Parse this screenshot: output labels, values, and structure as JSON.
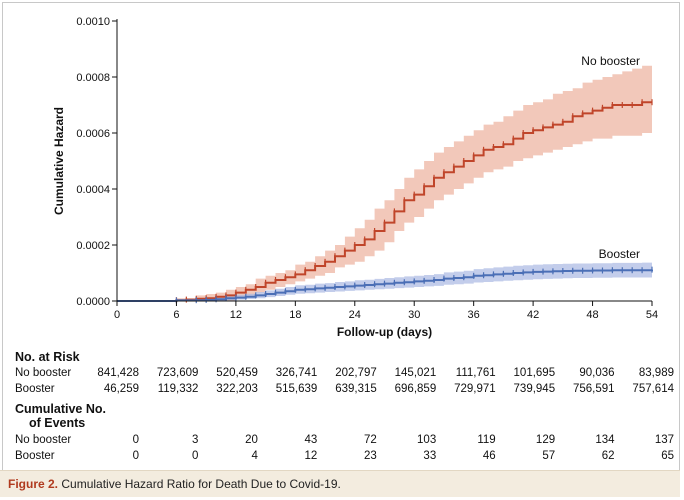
{
  "chart_data": {
    "type": "line",
    "xlabel": "Follow-up (days)",
    "ylabel": "Cumulative Hazard",
    "xlim": [
      0,
      54
    ],
    "ylim": [
      0,
      0.001
    ],
    "x_ticks": [
      0,
      6,
      12,
      18,
      24,
      30,
      36,
      42,
      48,
      54
    ],
    "y_ticks": [
      "0.0000",
      "0.0002",
      "0.0004",
      "0.0006",
      "0.0008",
      "0.0010"
    ],
    "series": [
      {
        "name": "No booster",
        "color": "#c0452a",
        "band_color": "#e9a48c",
        "x": [
          0,
          6,
          7,
          8,
          9,
          10,
          11,
          12,
          13,
          14,
          15,
          16,
          17,
          18,
          19,
          20,
          21,
          22,
          23,
          24,
          25,
          26,
          27,
          28,
          29,
          30,
          31,
          32,
          33,
          34,
          35,
          36,
          37,
          38,
          39,
          40,
          41,
          42,
          43,
          44,
          45,
          46,
          47,
          48,
          49,
          50,
          51,
          52,
          53,
          54
        ],
        "y": [
          0,
          3e-06,
          5e-06,
          8e-06,
          1e-05,
          1.5e-05,
          2e-05,
          3e-05,
          4e-05,
          5e-05,
          6.5e-05,
          7.5e-05,
          8.5e-05,
          9.5e-05,
          0.00011,
          0.000125,
          0.00014,
          0.00016,
          0.00018,
          0.0002,
          0.00022,
          0.00025,
          0.00028,
          0.00032,
          0.00036,
          0.00038,
          0.00041,
          0.00044,
          0.00046,
          0.00048,
          0.0005,
          0.00052,
          0.00054,
          0.00055,
          0.00056,
          0.00058,
          0.0006,
          0.00061,
          0.00062,
          0.00063,
          0.00064,
          0.00066,
          0.00067,
          0.00068,
          0.00069,
          0.0007,
          0.0007,
          0.0007,
          0.00071,
          0.00071
        ],
        "lower": [
          0,
          0,
          0,
          0,
          0,
          0,
          0,
          1e-05,
          2e-05,
          3e-05,
          4e-05,
          5e-05,
          6e-05,
          7e-05,
          8e-05,
          9e-05,
          0.0001,
          0.00012,
          0.00013,
          0.00014,
          0.00016,
          0.00018,
          0.00021,
          0.00025,
          0.00028,
          0.0003,
          0.00033,
          0.00036,
          0.00038,
          0.0004,
          0.00042,
          0.00044,
          0.00046,
          0.00047,
          0.00048,
          0.0005,
          0.00051,
          0.00052,
          0.00053,
          0.00054,
          0.00055,
          0.00056,
          0.00057,
          0.00058,
          0.00058,
          0.00059,
          0.00059,
          0.00059,
          0.0006,
          0.0006
        ],
        "upper": [
          0,
          1e-05,
          1e-05,
          2e-05,
          2.5e-05,
          3e-05,
          4e-05,
          5e-05,
          6e-05,
          8e-05,
          9e-05,
          0.0001,
          0.00011,
          0.00013,
          0.00014,
          0.00016,
          0.00018,
          0.0002,
          0.00023,
          0.00026,
          0.00029,
          0.00033,
          0.00036,
          0.0004,
          0.00044,
          0.00047,
          0.0005,
          0.00053,
          0.00055,
          0.00057,
          0.00059,
          0.00061,
          0.00063,
          0.00064,
          0.00066,
          0.00068,
          0.0007,
          0.00071,
          0.00072,
          0.00074,
          0.00075,
          0.00076,
          0.00078,
          0.00079,
          0.0008,
          0.00081,
          0.00082,
          0.00083,
          0.00084,
          0.00084
        ]
      },
      {
        "name": "Booster",
        "color": "#4b6fb6",
        "band_color": "#a9b8e3",
        "x": [
          0,
          6,
          8,
          9,
          10,
          11,
          12,
          13,
          14,
          15,
          16,
          17,
          18,
          19,
          20,
          21,
          22,
          23,
          24,
          25,
          26,
          27,
          28,
          29,
          30,
          31,
          32,
          33,
          34,
          35,
          36,
          37,
          38,
          39,
          40,
          41,
          42,
          43,
          44,
          45,
          46,
          47,
          48,
          49,
          50,
          51,
          52,
          53,
          54
        ],
        "y": [
          0,
          2e-06,
          3e-06,
          4e-06,
          6e-06,
          1e-05,
          1.2e-05,
          1.5e-05,
          2e-05,
          2.5e-05,
          3e-05,
          3.5e-05,
          4e-05,
          4.2e-05,
          4.5e-05,
          4.7e-05,
          5e-05,
          5.2e-05,
          5.5e-05,
          5.7e-05,
          6e-05,
          6.2e-05,
          6.5e-05,
          6.7e-05,
          7e-05,
          7.2e-05,
          7.5e-05,
          8e-05,
          8.2e-05,
          8.5e-05,
          9e-05,
          9.2e-05,
          9.5e-05,
          9.7e-05,
          0.0001,
          0.000102,
          0.000104,
          0.000105,
          0.000106,
          0.000107,
          0.000108,
          0.000108,
          0.000109,
          0.000109,
          0.00011,
          0.00011,
          0.00011,
          0.00011,
          0.000112
        ],
        "lower": [
          0,
          0,
          0,
          0,
          0,
          3e-06,
          5e-06,
          7e-06,
          1e-05,
          1.4e-05,
          1.8e-05,
          2.2e-05,
          2.6e-05,
          2.8e-05,
          3e-05,
          3.2e-05,
          3.4e-05,
          3.6e-05,
          3.8e-05,
          4e-05,
          4.2e-05,
          4.4e-05,
          4.6e-05,
          4.8e-05,
          5e-05,
          5.2e-05,
          5.4e-05,
          5.8e-05,
          6e-05,
          6.2e-05,
          6.6e-05,
          6.8e-05,
          7e-05,
          7.2e-05,
          7.4e-05,
          7.6e-05,
          7.8e-05,
          7.9e-05,
          8e-05,
          8.1e-05,
          8.2e-05,
          8.2e-05,
          8.3e-05,
          8.3e-05,
          8.4e-05,
          8.4e-05,
          8.4e-05,
          8.4e-05,
          8.5e-05
        ],
        "upper": [
          0,
          6e-06,
          8e-06,
          1e-05,
          1.3e-05,
          1.8e-05,
          2.2e-05,
          2.6e-05,
          3.2e-05,
          3.8e-05,
          4.4e-05,
          5e-05,
          5.6e-05,
          5.8e-05,
          6.2e-05,
          6.4e-05,
          6.8e-05,
          7e-05,
          7.4e-05,
          7.6e-05,
          7.9e-05,
          8.2e-05,
          8.5e-05,
          8.8e-05,
          9e-05,
          9.3e-05,
          9.6e-05,
          0.000102,
          0.000105,
          0.000108,
          0.000114,
          0.000117,
          0.00012,
          0.000123,
          0.000126,
          0.000128,
          0.00013,
          0.000131,
          0.000132,
          0.000133,
          0.000134,
          0.000134,
          0.000135,
          0.000135,
          0.000136,
          0.000136,
          0.000136,
          0.000137,
          0.000138
        ]
      }
    ],
    "annotations": [
      "No booster",
      "Booster"
    ]
  },
  "risk_table": {
    "title": "No. at Risk",
    "rows": [
      {
        "label": "No booster",
        "values": [
          "841,428",
          "723,609",
          "520,459",
          "326,741",
          "202,797",
          "145,021",
          "111,761",
          "101,695",
          "90,036",
          "83,989"
        ]
      },
      {
        "label": "Booster",
        "values": [
          "46,259",
          "119,332",
          "322,203",
          "515,639",
          "639,315",
          "696,859",
          "729,971",
          "739,945",
          "756,591",
          "757,614"
        ]
      }
    ]
  },
  "events_table": {
    "title_line1": "Cumulative No.",
    "title_line2": "of Events",
    "rows": [
      {
        "label": "No booster",
        "values": [
          "0",
          "3",
          "20",
          "43",
          "72",
          "103",
          "119",
          "129",
          "134",
          "137"
        ]
      },
      {
        "label": "Booster",
        "values": [
          "0",
          "0",
          "4",
          "12",
          "23",
          "33",
          "46",
          "57",
          "62",
          "65"
        ]
      }
    ]
  },
  "caption": {
    "label": "Figure 2.",
    "text": "Cumulative Hazard Ratio for Death Due to Covid-19."
  }
}
